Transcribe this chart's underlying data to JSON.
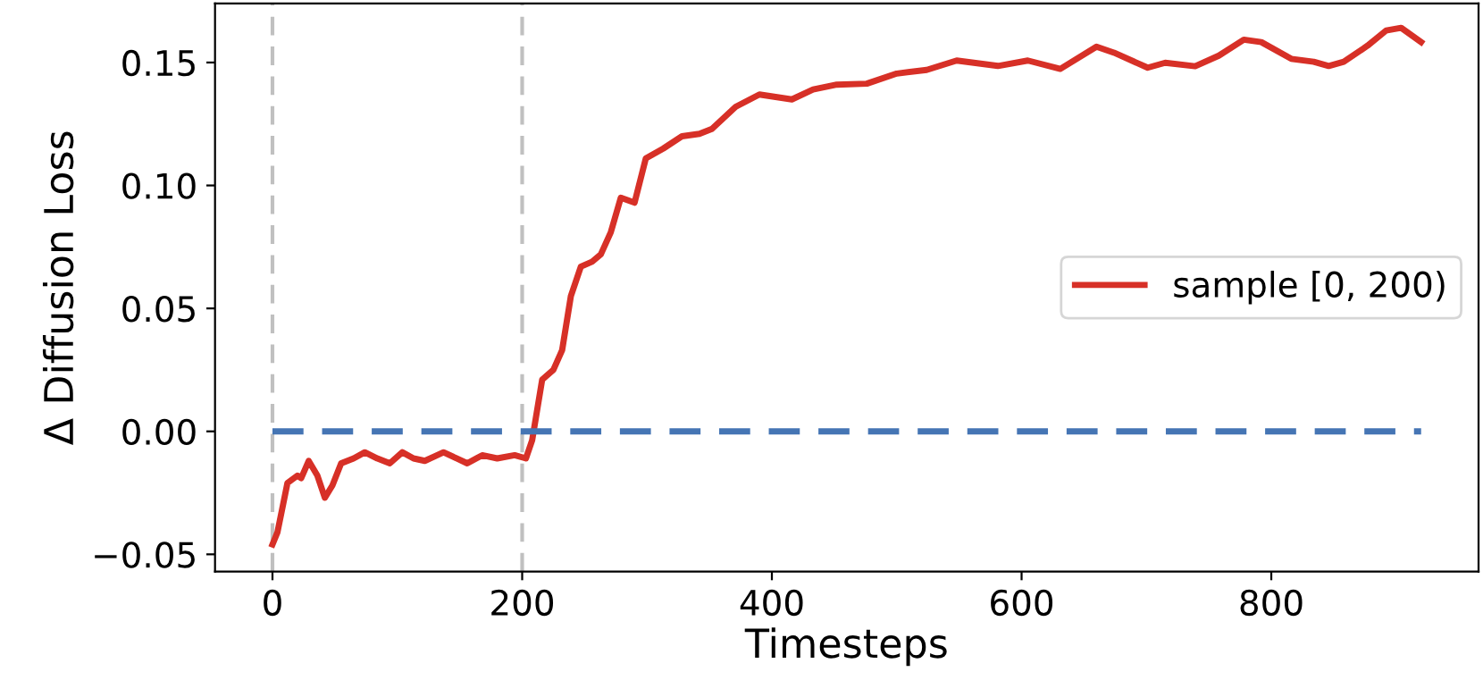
{
  "chart_data": {
    "type": "line",
    "xlabel": "Timesteps",
    "ylabel": "Δ Diffusion Loss",
    "xlim": [
      -46,
      966
    ],
    "ylim": [
      -0.057,
      0.174
    ],
    "xticks": [
      0,
      200,
      400,
      600,
      800
    ],
    "yticks": [
      {
        "value": -0.05,
        "label": "−0.05"
      },
      {
        "value": 0.0,
        "label": "0.00"
      },
      {
        "value": 0.05,
        "label": "0.05"
      },
      {
        "value": 0.1,
        "label": "0.10"
      },
      {
        "value": 0.15,
        "label": "0.15"
      }
    ],
    "legend": "center right",
    "grid": false,
    "ref_lines": [
      {
        "axis": "x",
        "value": 0,
        "color": "#c0c0c0",
        "line_style": "dashed"
      },
      {
        "axis": "x",
        "value": 200,
        "color": "#c0c0c0",
        "line_style": "dashed"
      }
    ],
    "series": [
      {
        "name": "sample [0, 200)",
        "color": "#d73027",
        "line_style": "solid",
        "x": [
          0,
          4,
          12,
          20,
          23,
          29,
          36,
          42,
          48,
          55,
          65,
          74,
          84,
          94,
          104,
          113,
          122,
          137,
          156,
          168,
          180,
          194,
          203,
          208,
          216,
          225,
          232,
          239,
          247,
          256,
          263,
          271,
          279,
          290,
          299,
          313,
          328,
          342,
          352,
          371,
          390,
          416,
          433,
          452,
          476,
          500,
          524,
          548,
          581,
          605,
          631,
          660,
          674,
          701,
          715,
          739,
          758,
          778,
          792,
          816,
          834,
          846,
          858,
          877,
          892,
          904,
          920
        ],
        "values": [
          -0.046,
          -0.041,
          -0.021,
          -0.018,
          -0.019,
          -0.012,
          -0.018,
          -0.027,
          -0.022,
          -0.013,
          -0.011,
          -0.0085,
          -0.011,
          -0.013,
          -0.0085,
          -0.011,
          -0.012,
          -0.0085,
          -0.013,
          -0.0097,
          -0.011,
          -0.0097,
          -0.011,
          -0.0036,
          0.021,
          0.025,
          0.033,
          0.055,
          0.067,
          0.069,
          0.072,
          0.081,
          0.095,
          0.093,
          0.111,
          0.115,
          0.12,
          0.121,
          0.123,
          0.132,
          0.137,
          0.135,
          0.139,
          0.141,
          0.1414,
          0.1455,
          0.147,
          0.1508,
          0.1486,
          0.1508,
          0.1474,
          0.1564,
          0.154,
          0.1479,
          0.1499,
          0.1485,
          0.1528,
          0.1593,
          0.1583,
          0.1515,
          0.1503,
          0.1486,
          0.1503,
          0.1568,
          0.163,
          0.1641,
          0.1583
        ]
      },
      {
        "color": "#4575b4",
        "line_style": "dashed",
        "x": [
          0,
          920
        ],
        "values": [
          0,
          0
        ]
      }
    ]
  }
}
